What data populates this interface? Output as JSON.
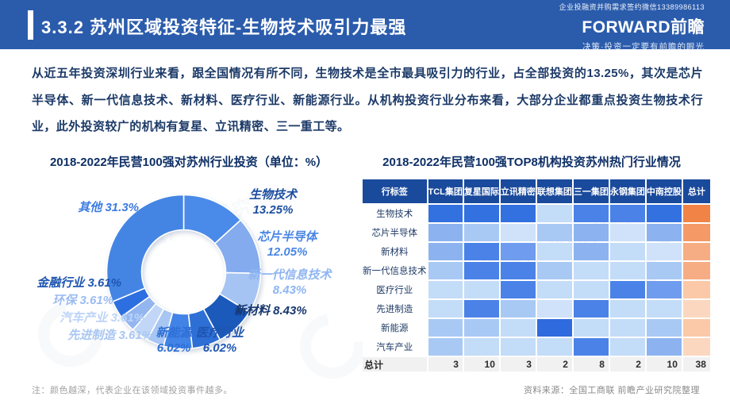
{
  "header": {
    "title": "3.3.2 苏州区域投资特征-生物技术吸引力最强",
    "contact_note": "企业投融资并购需求签约微信13389986113",
    "logo_text": "FORWARD前瞻",
    "tagline": "决策·投资一定要有前瞻的眼光",
    "banner_color": "#2b5cac"
  },
  "intro_text": "从近五年投资深圳行业来看，跟全国情况有所不同，生物技术是全市最具吸引力的行业，占全部投资的13.25%，其次是芯片半导体、新一代信息技术、新材料、医疗行业、新能源行业。从机构投资行业分布来看，大部分企业都重点投资生物技术行业，此外投资较广的机构有复星、立讯精密、三一重工等。",
  "watermark_text": "前瞻产业研究院",
  "footer": {
    "note": "注：颜色越深，代表企业在该领域投资事件越多。",
    "source": "资料来源：全国工商联 前瞻产业研究院整理"
  },
  "chart_data": [
    {
      "type": "pie",
      "subtype": "donut",
      "title": "2018-2022年民营100强对苏州行业投资（单位：%）",
      "unit": "%",
      "labels": [
        "生物技术",
        "芯片半导体",
        "新一代信息技术",
        "新材料",
        "医疗行业",
        "新能源",
        "先进制造",
        "汽车产业",
        "环保",
        "金融行业",
        "其他"
      ],
      "values": [
        13.25,
        12.05,
        8.43,
        8.43,
        6.02,
        6.02,
        3.61,
        3.61,
        3.61,
        3.61,
        31.3
      ],
      "display_values": [
        "13.25%",
        "12.05%",
        "8.43%",
        "8.43%",
        "6.02%",
        "6.02%",
        "3.61%",
        "3.61%",
        "3.61%",
        "3.61%",
        "31.3%"
      ],
      "slice_colors": [
        "#4a8ae8",
        "#83abee",
        "#a6c4f3",
        "#1b59bb",
        "#2e6fd6",
        "#4183e6",
        "#a8c6f3",
        "#c2d7f7",
        "#93b6f0",
        "#2d6fe0",
        "#4485e4"
      ],
      "label_colors": [
        "#1d4fa0",
        "#4a86e4",
        "#8fb5f2",
        "#16376e",
        "#1e55b0",
        "#2e6fd6",
        "#a8c6f3",
        "#bcd3f7",
        "#9cbcf2",
        "#1e55b0",
        "#3c7ce2"
      ],
      "start_angle_deg": 0,
      "direction": "clockwise",
      "legend": "labels-around-donut"
    },
    {
      "type": "heatmap",
      "title": "2018-2022年民营100强TOP8机构投资苏州热门行业情况",
      "corner_label": "行标签",
      "columns": [
        "TCL集团",
        "复星国际",
        "立讯精密",
        "联想集团",
        "三一集团",
        "永钢集团",
        "中南控股"
      ],
      "total_column_label": "总计",
      "rows": [
        {
          "label": "生物技术",
          "cell_colors": [
            "#3370e0",
            "#3370e0",
            "#3370e0",
            "#c3dcf7",
            "#4a82e8",
            "#4a82e8",
            "#3370e0"
          ],
          "total_color": "#f08345"
        },
        {
          "label": "芯片半导体",
          "cell_colors": [
            "#8cb3f0",
            "#a9c9f5",
            "#cfe2f9",
            "#a9c9f5",
            "#8cb3f0",
            "#cfe2f9",
            "#8cb3f0"
          ],
          "total_color": "#f59a66"
        },
        {
          "label": "新材料",
          "cell_colors": [
            "#8cb3f0",
            "#4a82e8",
            "#6f9cee",
            "#c3dcf7",
            "#8cb3f0",
            "#c3dcf7",
            "#cfe2f9"
          ],
          "total_color": "#f7ad83"
        },
        {
          "label": "新一代信息技术",
          "cell_colors": [
            "#a9c9f5",
            "#4a82e8",
            "#4a82e8",
            "#a9c9f5",
            "#c3dcf7",
            "#c3dcf7",
            "#a9c9f5"
          ],
          "total_color": "#f7ad83"
        },
        {
          "label": "医疗行业",
          "cell_colors": [
            "#c3dcf7",
            "#c3dcf7",
            "#4a82e8",
            "#c3dcf7",
            "#c3dcf7",
            "#4a82e8",
            "#6f9cee"
          ],
          "total_color": "#fbc9a7"
        },
        {
          "label": "先进制造",
          "cell_colors": [
            "#c3dcf7",
            "#4a82e8",
            "#a9c9f5",
            "#cfe2f9",
            "#4a82e8",
            "#c3dcf7",
            "#c3dcf7"
          ],
          "total_color": "#fcd7bf"
        },
        {
          "label": "新能源",
          "cell_colors": [
            "#a9c9f5",
            "#a9c9f5",
            "#c3dcf7",
            "#2f6ade",
            "#c3dcf7",
            "#c3dcf7",
            "#a9c9f5"
          ],
          "total_color": "#fbc9a7"
        },
        {
          "label": "汽车产业",
          "cell_colors": [
            "#a9c9f5",
            "#c3dcf7",
            "#c3dcf7",
            "#c3dcf7",
            "#4a82e8",
            "#c3dcf7",
            "#8cb3f0"
          ],
          "total_color": "#fcd7bf"
        }
      ],
      "totals_row_label": "总计",
      "column_totals": [
        3,
        10,
        3,
        2,
        8,
        2,
        10
      ],
      "grand_total": 38,
      "header_bg": "#1a4a9c",
      "legend_note": "颜色越深，代表企业在该领域投资事件越多"
    }
  ]
}
